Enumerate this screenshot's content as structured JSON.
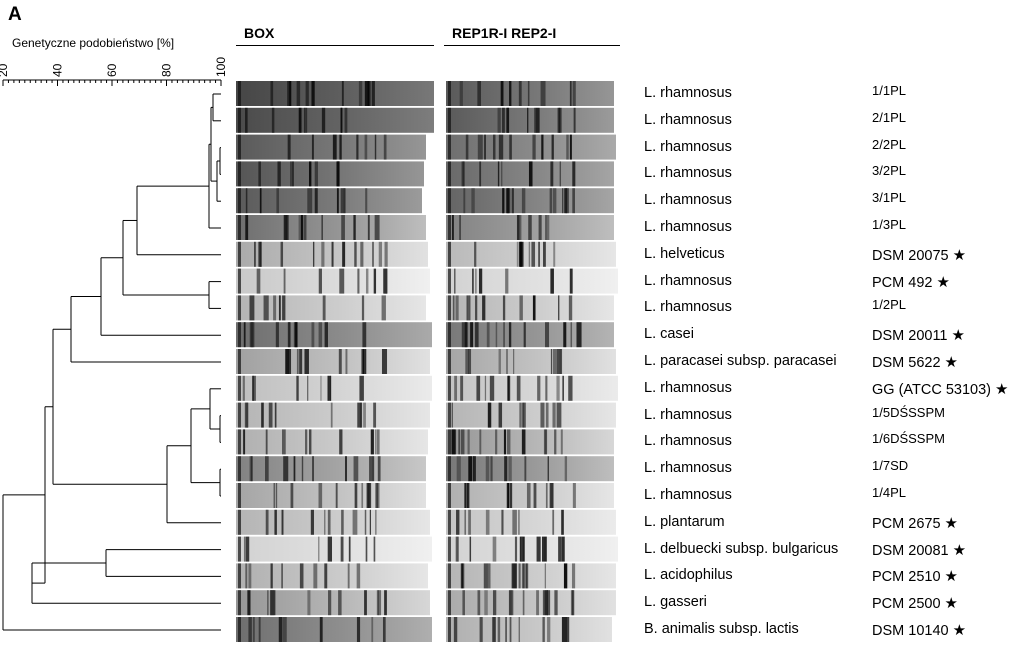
{
  "panel_label": "A",
  "axis": {
    "title": "Genetyczne podobieństwo [%]",
    "ticks": [
      "20",
      "40",
      "60",
      "80",
      "100"
    ]
  },
  "columns": {
    "box": "BOX",
    "rep": "REP1R-I REP2-I"
  },
  "star_glyph": "★",
  "rows": [
    {
      "species": "L. rhamnosus",
      "strain": "1/1PL",
      "reference": false
    },
    {
      "species": "L. rhamnosus",
      "strain": "2/1PL",
      "reference": false
    },
    {
      "species": "L. rhamnosus",
      "strain": "2/2PL",
      "reference": false
    },
    {
      "species": "L. rhamnosus",
      "strain": "3/2PL",
      "reference": false
    },
    {
      "species": "L. rhamnosus",
      "strain": "3/1PL",
      "reference": false
    },
    {
      "species": "L. rhamnosus",
      "strain": "1/3PL",
      "reference": false
    },
    {
      "species": "L. helveticus",
      "strain": "DSM 20075",
      "reference": true
    },
    {
      "species": "L. rhamnosus",
      "strain": "PCM 492",
      "reference": true
    },
    {
      "species": "L. rhamnosus",
      "strain": "1/2PL",
      "reference": false
    },
    {
      "species": "L. casei",
      "strain": "DSM 20011",
      "reference": true
    },
    {
      "species": "L. paracasei subsp. paracasei",
      "strain": "DSM 5622",
      "reference": true
    },
    {
      "species": "L. rhamnosus",
      "strain": "GG (ATCC 53103)",
      "reference": true
    },
    {
      "species": "L. rhamnosus",
      "strain": "1/5DŚSSPM",
      "reference": false
    },
    {
      "species": "L. rhamnosus",
      "strain": "1/6DŚSSPM",
      "reference": false
    },
    {
      "species": "L. rhamnosus",
      "strain": "1/7SD",
      "reference": false
    },
    {
      "species": "L. rhamnosus",
      "strain": "1/4PL",
      "reference": false
    },
    {
      "species": "L. plantarum",
      "strain": "PCM 2675",
      "reference": true
    },
    {
      "species": "L. delbuecki subsp. bulgaricus",
      "strain": "DSM 20081",
      "reference": true
    },
    {
      "species": "L. acidophilus",
      "strain": "PCM 2510",
      "reference": true
    },
    {
      "species": "L. gasseri",
      "strain": "PCM 2500",
      "reference": true
    },
    {
      "species": "B. animalis subsp. lactis",
      "strain": "DSM 10140",
      "reference": true
    }
  ]
}
